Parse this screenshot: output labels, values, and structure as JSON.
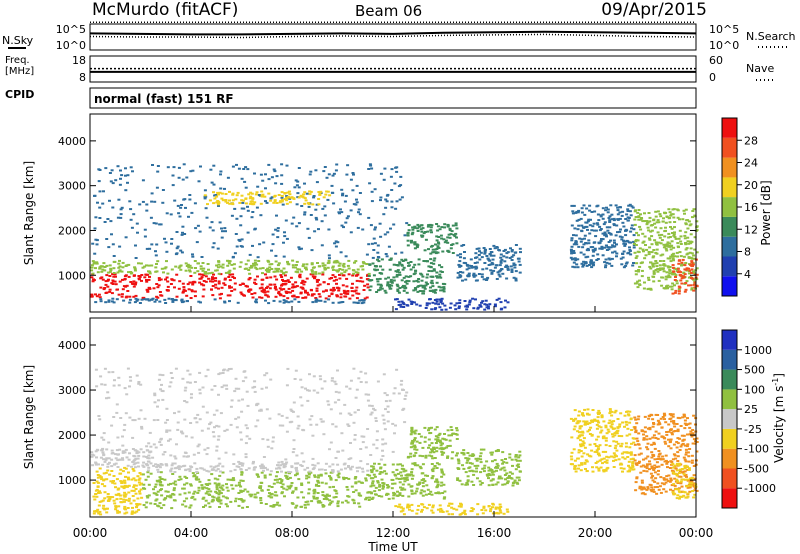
{
  "header": {
    "title": "McMurdo (fitACF)",
    "beam": "Beam 06",
    "date": "09/Apr/2015",
    "cpid_label": "CPID",
    "cpid_value": "normal (fast) 151 RF"
  },
  "colors": {
    "power_scale": [
      "#1010ee",
      "#2040b0",
      "#2e6e9e",
      "#3a8a5a",
      "#90c040",
      "#f0d020",
      "#f09020",
      "#f05020",
      "#ee1010"
    ],
    "velocity_scale": [
      "#2030c0",
      "#2a60a0",
      "#3a8a5a",
      "#90c040",
      "#c8c8c8",
      "#f0d020",
      "#f09020",
      "#f05020",
      "#ee1010"
    ],
    "ground_scatter": "#b4b4b4"
  },
  "chart_data": [
    {
      "type": "line",
      "panel": "noise",
      "ylabel_left": "N.Sky",
      "ylabel_right": "N.Search",
      "yticks": [
        "10^5",
        "10^0"
      ],
      "yticks_right": [
        "10^5",
        "10^0"
      ],
      "series": [
        {
          "name": "N.Sky",
          "style": "solid",
          "values": [
            3.2,
            3.1,
            3.0,
            3.0,
            3.1,
            3.2,
            3.1,
            3.3,
            3.4,
            3.5,
            3.4,
            3.3,
            3.2
          ]
        },
        {
          "name": "N.Search",
          "style": "dotted",
          "values": [
            2.6,
            2.5,
            2.5,
            2.4,
            2.6,
            2.7,
            2.6,
            2.8,
            2.9,
            3.0,
            2.8,
            2.6,
            2.5
          ]
        }
      ]
    },
    {
      "type": "line",
      "panel": "frequency",
      "ylabel_left": "Freq. [MHz]",
      "ylabel_right": "Nave",
      "yticks": [
        "18",
        "8"
      ],
      "yticks_right": [
        "60",
        "0"
      ],
      "series": [
        {
          "name": "Freq. [MHz]",
          "style": "solid",
          "values": [
            11.9,
            11.9,
            11.9,
            11.9,
            11.9,
            11.9,
            11.9,
            11.9,
            11.9,
            11.9,
            11.9,
            11.9,
            11.9
          ]
        },
        {
          "name": "Nave",
          "style": "dotted",
          "values": [
            31,
            31,
            31,
            31,
            31,
            31,
            31,
            31,
            31,
            31,
            31,
            31,
            31
          ]
        }
      ]
    },
    {
      "type": "heatmap",
      "panel": "power",
      "ylabel": "Slant Range [km]",
      "yticks": [
        "1000",
        "2000",
        "3000",
        "4000"
      ],
      "ylim": [
        180,
        4600
      ],
      "colorbar": {
        "label": "Power [dB]",
        "ticks": [
          "4",
          "8",
          "12",
          "16",
          "20",
          "24",
          "28"
        ],
        "range": [
          0,
          30
        ]
      },
      "bands": [
        {
          "t_start": 0.0,
          "t_end": 11.0,
          "range_start": 500,
          "range_end": 1050,
          "value": 28
        },
        {
          "t_start": 0.0,
          "t_end": 11.0,
          "range_start": 1050,
          "range_end": 1350,
          "value": 16
        },
        {
          "t_start": 0.0,
          "t_end": 11.0,
          "range_start": 400,
          "range_end": 500,
          "value": 9
        },
        {
          "t_start": 11.0,
          "t_end": 14.0,
          "range_start": 600,
          "range_end": 1400,
          "value": 10
        },
        {
          "t_start": 12.5,
          "t_end": 14.5,
          "range_start": 1500,
          "range_end": 2200,
          "value": 12
        },
        {
          "t_start": 14.5,
          "t_end": 17.0,
          "range_start": 900,
          "range_end": 1700,
          "value": 9
        },
        {
          "t_start": 12.0,
          "t_end": 16.5,
          "range_start": 250,
          "range_end": 500,
          "value": 6
        },
        {
          "t_start": 0.0,
          "t_end": 12.5,
          "range_start": 1400,
          "range_end": 3500,
          "value": 7
        },
        {
          "t_start": 4.5,
          "t_end": 9.5,
          "range_start": 2600,
          "range_end": 2900,
          "value": 18
        },
        {
          "t_start": 19.0,
          "t_end": 21.5,
          "range_start": 1200,
          "range_end": 2600,
          "value": 7
        },
        {
          "t_start": 21.5,
          "t_end": 24.0,
          "range_start": 700,
          "range_end": 2500,
          "value": 14
        },
        {
          "t_start": 23.0,
          "t_end": 24.0,
          "range_start": 600,
          "range_end": 1400,
          "value": 26
        }
      ]
    },
    {
      "type": "heatmap",
      "panel": "velocity",
      "ylabel": "Slant Range [km]",
      "yticks": [
        "1000",
        "2000",
        "3000",
        "4000"
      ],
      "ylim": [
        180,
        4600
      ],
      "colorbar": {
        "label": "Velocity [m s^-1]",
        "ticks": [
          "1000",
          "500",
          "100",
          "25",
          "-25",
          "-100",
          "-500",
          "-1000"
        ],
        "range": [
          -1200,
          1200
        ]
      },
      "xlabel": "Time UT",
      "xticks": [
        "00:00",
        "04:00",
        "08:00",
        "12:00",
        "16:00",
        "20:00",
        "00:00"
      ],
      "xlim": [
        0,
        24
      ],
      "bands": [
        {
          "t_start": 0.0,
          "t_end": 2.0,
          "range_start": 250,
          "range_end": 1300,
          "value": -300
        },
        {
          "t_start": 0.0,
          "t_end": 2.5,
          "range_start": 1300,
          "range_end": 1700,
          "value": 0
        },
        {
          "t_start": 2.0,
          "t_end": 11.0,
          "range_start": 400,
          "range_end": 1200,
          "value": 200
        },
        {
          "t_start": 2.0,
          "t_end": 11.0,
          "range_start": 1200,
          "range_end": 1400,
          "value": 60
        },
        {
          "t_start": 11.0,
          "t_end": 14.0,
          "range_start": 600,
          "range_end": 1400,
          "value": 150
        },
        {
          "t_start": 12.5,
          "t_end": 14.5,
          "range_start": 1500,
          "range_end": 2200,
          "value": 200
        },
        {
          "t_start": 14.5,
          "t_end": 17.0,
          "range_start": 900,
          "range_end": 1700,
          "value": 180
        },
        {
          "t_start": 12.0,
          "t_end": 16.5,
          "range_start": 250,
          "range_end": 500,
          "value": -300
        },
        {
          "t_start": 0.0,
          "t_end": 12.5,
          "range_start": 1400,
          "range_end": 3500,
          "value": 80
        },
        {
          "t_start": 19.0,
          "t_end": 21.5,
          "range_start": 1200,
          "range_end": 2600,
          "value": -250
        },
        {
          "t_start": 21.5,
          "t_end": 24.0,
          "range_start": 700,
          "range_end": 2500,
          "value": -600
        },
        {
          "t_start": 23.0,
          "t_end": 24.0,
          "range_start": 600,
          "range_end": 1400,
          "value": -150
        }
      ]
    }
  ]
}
